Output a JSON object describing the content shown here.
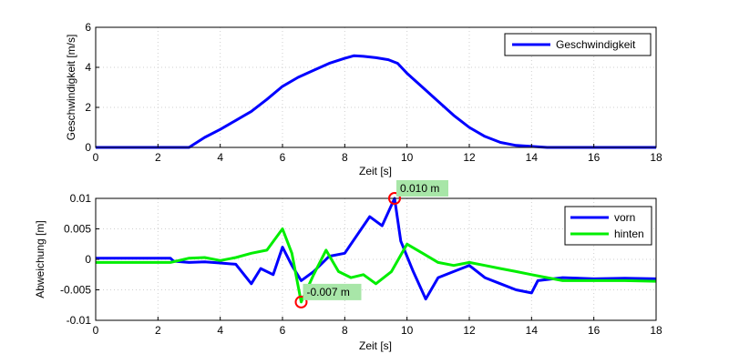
{
  "chart_data": [
    {
      "type": "line",
      "xlabel": "Zeit [s]",
      "ylabel": "Geschwindigkeit [m/s]",
      "xlim": [
        0,
        18
      ],
      "ylim": [
        0,
        6
      ],
      "xticks": [
        "0",
        "2",
        "4",
        "6",
        "8",
        "10",
        "12",
        "14",
        "16",
        "18"
      ],
      "yticks": [
        "0",
        "2",
        "4",
        "6"
      ],
      "grid": true,
      "legend_position": "top-right",
      "series": [
        {
          "name": "Geschwindigkeit",
          "color": "#0000ff",
          "x": [
            0,
            3.0,
            3.1,
            3.5,
            4.0,
            4.5,
            5.0,
            5.5,
            6.0,
            6.5,
            7.0,
            7.5,
            8.0,
            8.3,
            8.6,
            9.0,
            9.4,
            9.7,
            10.0,
            10.5,
            11.0,
            11.5,
            12.0,
            12.5,
            13.0,
            13.5,
            14.0,
            14.5,
            18.0
          ],
          "y": [
            0,
            0,
            0.1,
            0.5,
            0.9,
            1.35,
            1.8,
            2.4,
            3.05,
            3.5,
            3.85,
            4.2,
            4.45,
            4.58,
            4.55,
            4.48,
            4.38,
            4.2,
            3.7,
            3.0,
            2.3,
            1.6,
            1.0,
            0.55,
            0.25,
            0.1,
            0.05,
            0,
            0
          ]
        }
      ]
    },
    {
      "type": "line",
      "xlabel": "Zeit [s]",
      "ylabel": "Abweichung [m]",
      "xlim": [
        0,
        18
      ],
      "ylim": [
        -0.01,
        0.01
      ],
      "xticks": [
        "0",
        "2",
        "4",
        "6",
        "8",
        "10",
        "12",
        "14",
        "16",
        "18"
      ],
      "yticks": [
        "-0.01",
        "-0.005",
        "0",
        "0.005",
        "0.01"
      ],
      "grid": true,
      "legend_position": "top-right",
      "series": [
        {
          "name": "vorn",
          "color": "#0000ff",
          "x": [
            0,
            2.4,
            2.5,
            3.0,
            3.5,
            4.0,
            4.5,
            5.0,
            5.3,
            5.7,
            6.0,
            6.3,
            6.6,
            7.0,
            7.5,
            8.0,
            8.4,
            8.8,
            9.2,
            9.6,
            9.8,
            10.2,
            10.6,
            11.0,
            11.5,
            12.0,
            12.5,
            13.0,
            13.5,
            14.0,
            14.2,
            15.0,
            16.0,
            17.0,
            18.0
          ],
          "y": [
            0.0002,
            0.0002,
            -0.0003,
            -0.0005,
            -0.0004,
            -0.0006,
            -0.0008,
            -0.004,
            -0.0015,
            -0.0025,
            0.002,
            -0.001,
            -0.0035,
            -0.002,
            0.0005,
            0.001,
            0.004,
            0.007,
            0.0055,
            0.01,
            0.003,
            -0.002,
            -0.0065,
            -0.003,
            -0.002,
            -0.001,
            -0.003,
            -0.004,
            -0.005,
            -0.0055,
            -0.0035,
            -0.003,
            -0.0032,
            -0.0031,
            -0.0032
          ]
        },
        {
          "name": "hinten",
          "color": "#00ee00",
          "x": [
            0,
            2.4,
            3.0,
            3.5,
            4.0,
            4.5,
            5.0,
            5.5,
            6.0,
            6.3,
            6.6,
            7.0,
            7.4,
            7.8,
            8.2,
            8.6,
            9.0,
            9.5,
            10.0,
            10.5,
            11.0,
            11.5,
            12.0,
            12.5,
            13.0,
            13.5,
            14.0,
            14.5,
            15.0,
            16.0,
            17.0,
            18.0
          ],
          "y": [
            -0.0005,
            -0.0005,
            0.0002,
            0.0003,
            -0.0002,
            0.0003,
            0.001,
            0.0015,
            0.005,
            0.001,
            -0.007,
            -0.0025,
            0.0015,
            -0.002,
            -0.003,
            -0.0025,
            -0.004,
            -0.002,
            0.0025,
            0.001,
            -0.0005,
            -0.001,
            -0.0005,
            -0.001,
            -0.0015,
            -0.002,
            -0.0025,
            -0.003,
            -0.0035,
            -0.0035,
            -0.0035,
            -0.0036
          ]
        }
      ],
      "annotations": [
        {
          "label": "0.010 m",
          "x": 9.6,
          "y": 0.01
        },
        {
          "label": "-0.007 m",
          "x": 6.6,
          "y": -0.007
        }
      ]
    }
  ]
}
